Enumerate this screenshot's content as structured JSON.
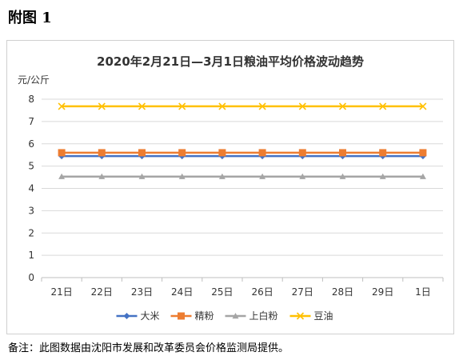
{
  "heading": "附图 1",
  "note": "备注：此图数据由沈阳市发展和改革委员会价格监测局提供。",
  "chart_data": {
    "type": "line",
    "title": "2020年2月21日—3月1日粮油平均价格波动趋势",
    "ylabel": "元/公斤",
    "xlabel": "",
    "categories": [
      "21日",
      "22日",
      "23日",
      "24日",
      "25日",
      "26日",
      "27日",
      "28日",
      "29日",
      "1日"
    ],
    "ylim": [
      0,
      8
    ],
    "yticks": [
      0,
      1,
      2,
      3,
      4,
      5,
      6,
      7,
      8
    ],
    "grid": true,
    "legend": "bottom",
    "series": [
      {
        "name": "大米",
        "color": "#4472c4",
        "marker": "diamond",
        "values": [
          5.45,
          5.45,
          5.45,
          5.45,
          5.45,
          5.45,
          5.45,
          5.45,
          5.45,
          5.45
        ]
      },
      {
        "name": "精粉",
        "color": "#ed7d31",
        "marker": "square",
        "values": [
          5.6,
          5.6,
          5.6,
          5.6,
          5.6,
          5.6,
          5.6,
          5.6,
          5.6,
          5.6
        ]
      },
      {
        "name": "上白粉",
        "color": "#a5a5a5",
        "marker": "triangle",
        "values": [
          4.53,
          4.53,
          4.53,
          4.53,
          4.53,
          4.53,
          4.53,
          4.53,
          4.53,
          4.53
        ]
      },
      {
        "name": "豆油",
        "color": "#ffc000",
        "marker": "x",
        "values": [
          7.68,
          7.68,
          7.68,
          7.68,
          7.68,
          7.68,
          7.68,
          7.68,
          7.68,
          7.68
        ]
      }
    ]
  }
}
